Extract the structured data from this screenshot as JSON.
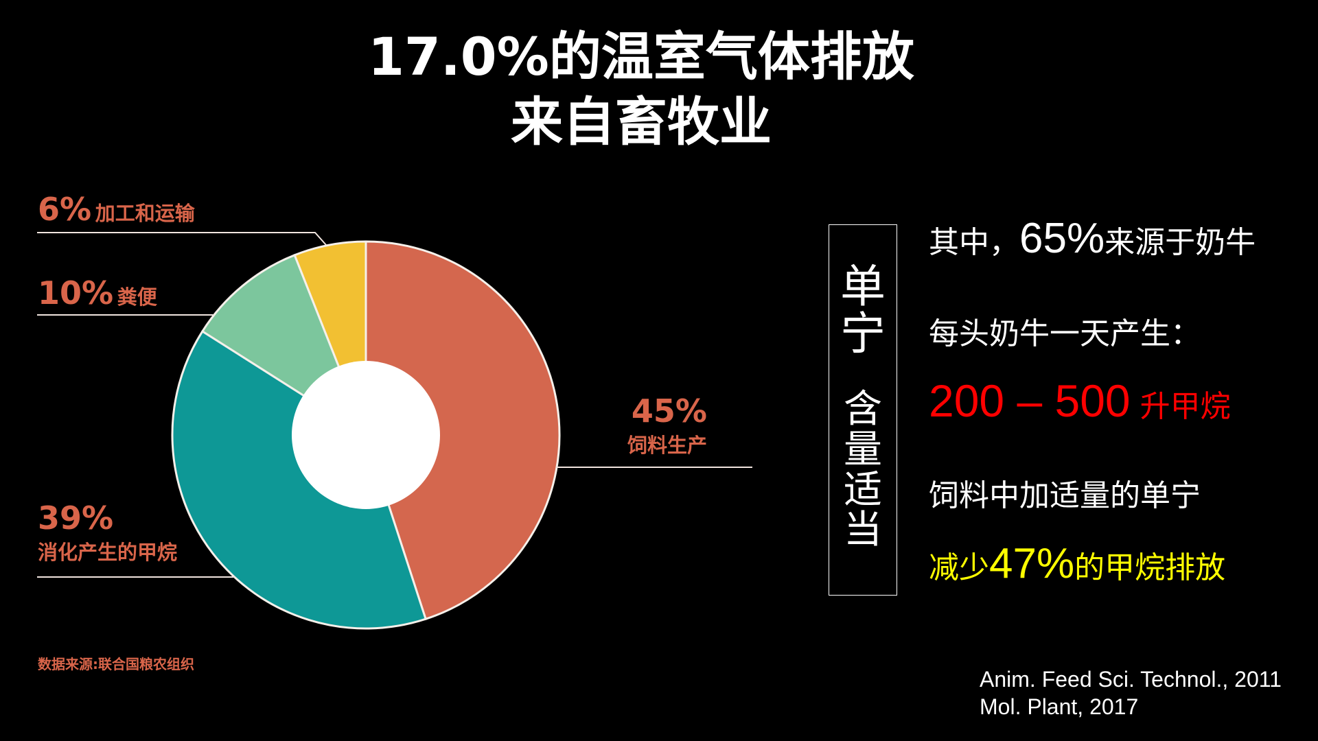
{
  "title": {
    "line1": "17.0%的温室气体排放",
    "line2": "来自畜牧业"
  },
  "chart_data": {
    "type": "pie",
    "title": "17.0%的温室气体排放来自畜牧业",
    "slices": [
      {
        "label": "饲料生产",
        "value": 45,
        "value_label": "45%",
        "color": "#d4674e"
      },
      {
        "label": "消化产生的甲烷",
        "value": 39,
        "value_label": "39%",
        "color": "#0e9896"
      },
      {
        "label": "粪便",
        "value": 10,
        "value_label": "10%",
        "color": "#7cc69d"
      },
      {
        "label": "加工和运输",
        "value": 6,
        "value_label": "6%",
        "color": "#f2c032"
      }
    ],
    "center_color": "#ffffff",
    "label_color": "#d9654a",
    "source": "数据来源:联合国粮农组织"
  },
  "sidebox": {
    "top": "单宁",
    "bottom": "含量适当"
  },
  "facts": {
    "l1_a": "其中，",
    "l1_b": "65%",
    "l1_c": "来源于奶牛",
    "l2": "每头奶牛一天产生：",
    "l3_a": "200 – 500",
    "l3_b": " 升甲烷",
    "l4": "饲料中加适量的单宁",
    "l5_a": "减少",
    "l5_b": "47%",
    "l5_c": "的甲烷排放"
  },
  "colors": {
    "red": "#ff0000",
    "yellow": "#ffff00"
  },
  "references": [
    "Anim. Feed Sci. Technol., 2011",
    "Mol. Plant, 2017"
  ]
}
